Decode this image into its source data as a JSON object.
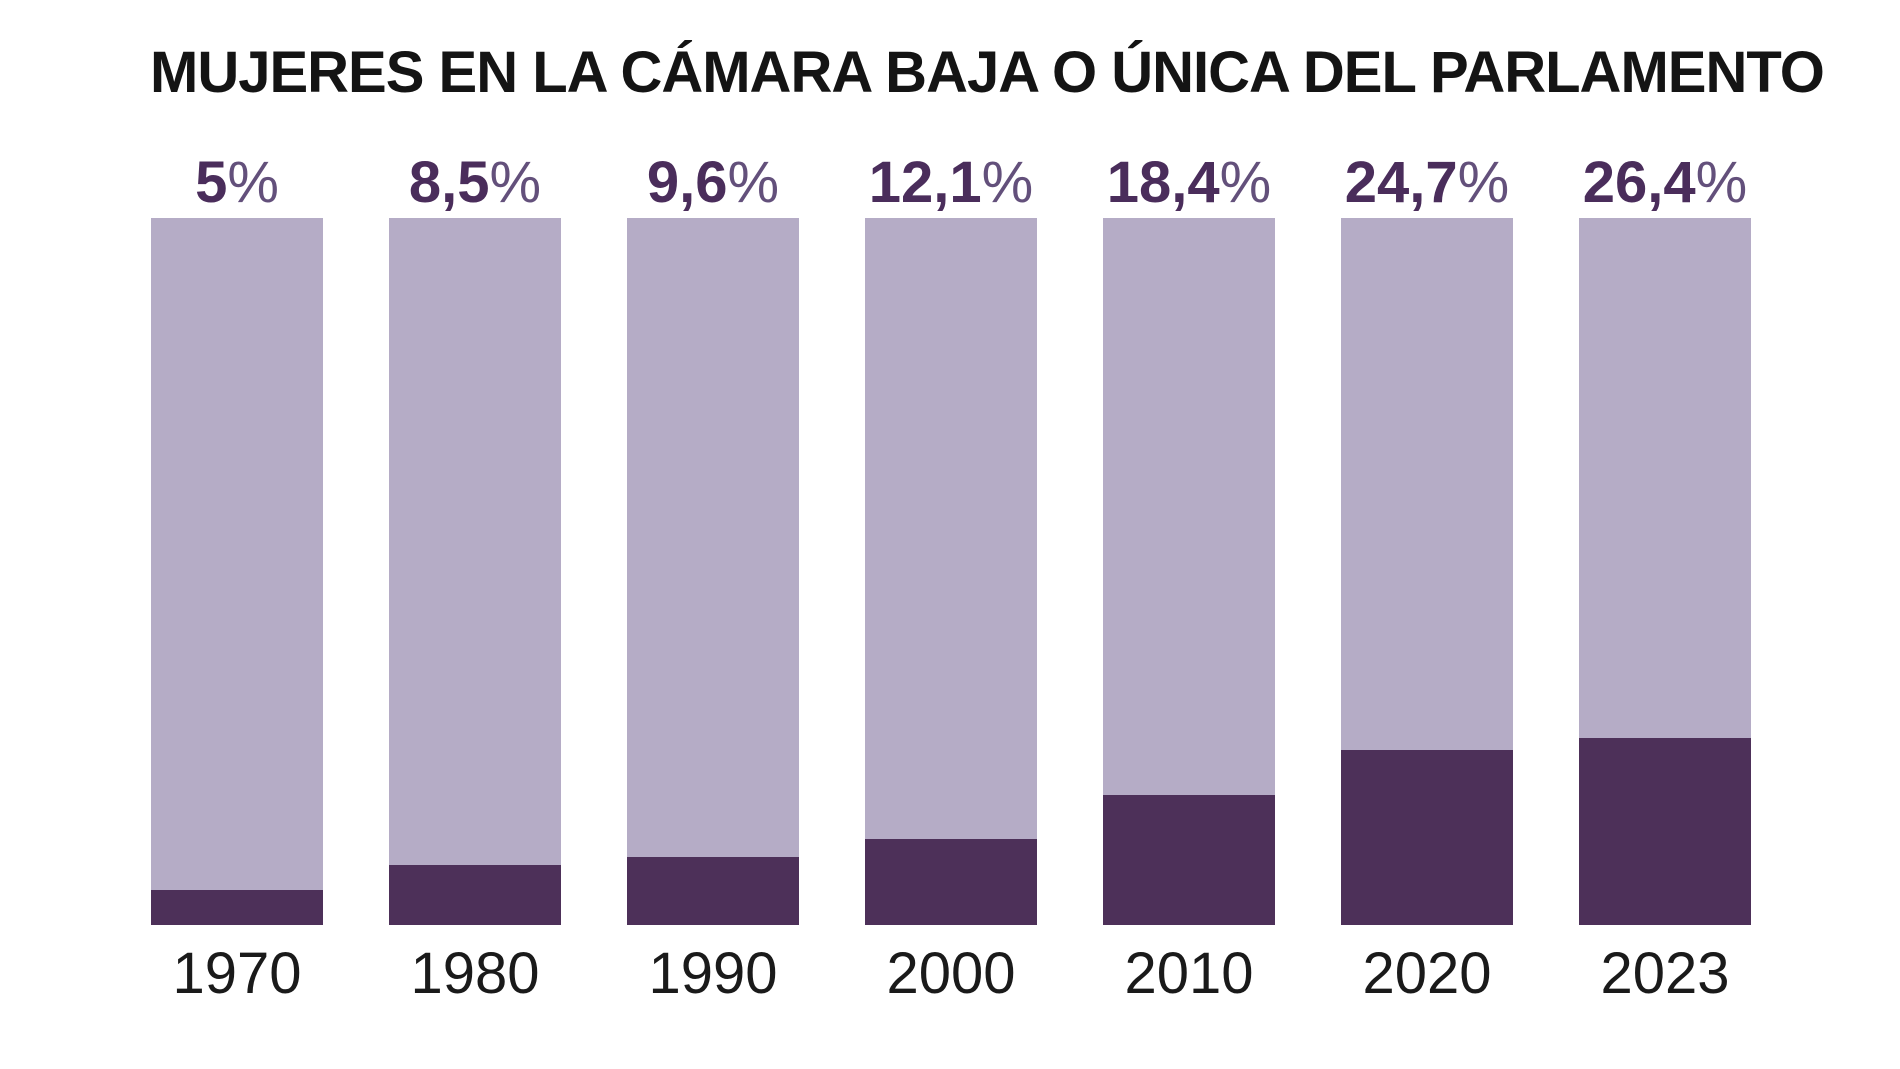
{
  "title": "MUJERES EN LA CÁMARA BAJA O ÚNICA DEL PARLAMENTO",
  "colors": {
    "background": "#ffffff",
    "title": "#141414",
    "bar_track": "#b5acc6",
    "bar_fill": "#4d3059",
    "pct_number": "#4a2d5b",
    "pct_sign": "#63507b",
    "year_label": "#1a1a1a"
  },
  "chart_data": {
    "type": "bar",
    "title": "MUJERES EN LA CÁMARA BAJA O ÚNICA DEL PARLAMENTO",
    "categories": [
      "1970",
      "1980",
      "1990",
      "2000",
      "2010",
      "2020",
      "2023"
    ],
    "values": [
      5,
      8.5,
      9.6,
      12.1,
      18.4,
      24.7,
      26.4
    ],
    "value_labels": [
      "5%",
      "8,5%",
      "9,6%",
      "12,1%",
      "18,4%",
      "24,7%",
      "26,4%"
    ],
    "xlabel": "",
    "ylabel": "",
    "ylim": [
      0,
      100
    ],
    "grid": false,
    "legend": "none",
    "bar_style": "each bar is a full-height 100% track with a dark filled portion from the bottom equal to the value"
  }
}
